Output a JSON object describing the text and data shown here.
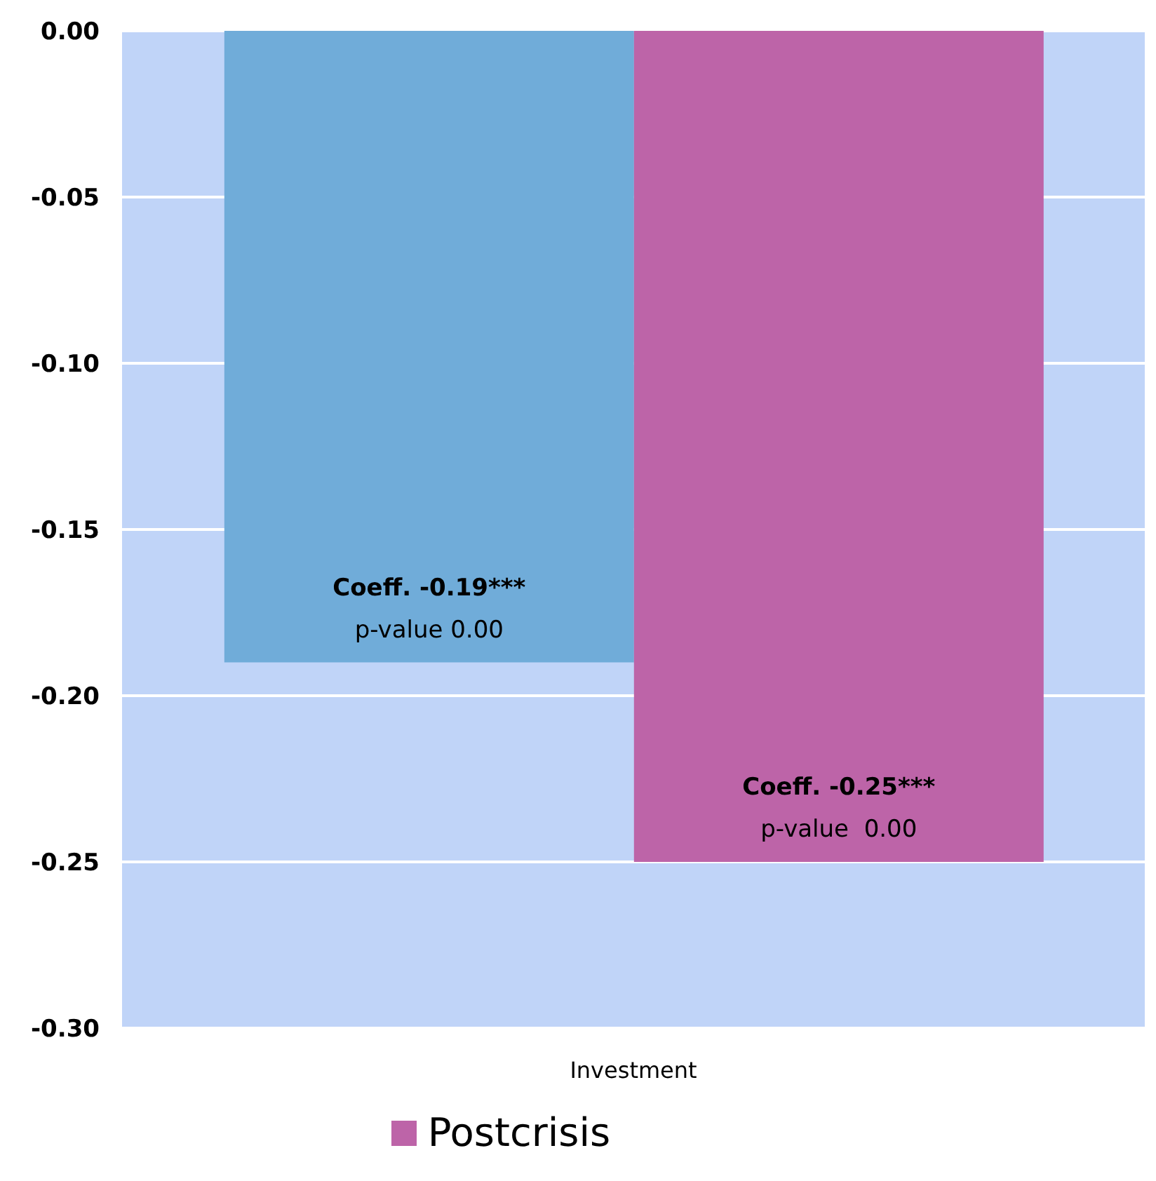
{
  "chart_data": {
    "type": "bar",
    "categories": [
      "Investment"
    ],
    "series": [
      {
        "color": "#70acd9",
        "values": [
          -0.19
        ],
        "value_labels": [
          "Coeff. -0.19***\np-value 0.00"
        ]
      },
      {
        "name": "Postcrisis",
        "color": "#bd64a8",
        "values": [
          -0.25
        ],
        "value_labels": [
          "Coeff. -0.25***\np-value  0.00"
        ]
      }
    ],
    "ylim": [
      -0.3,
      0
    ],
    "yticks": [
      {
        "value": 0,
        "label": "0.00"
      },
      {
        "value": -0.05,
        "label": "-0.05"
      },
      {
        "value": -0.1,
        "label": "-0.10"
      },
      {
        "value": -0.15,
        "label": "-0.15"
      },
      {
        "value": -0.2,
        "label": "-0.20"
      },
      {
        "value": -0.25,
        "label": "-0.25"
      },
      {
        "value": -0.3,
        "label": "-0.30"
      }
    ],
    "grid": "y",
    "legend": "bottom"
  }
}
